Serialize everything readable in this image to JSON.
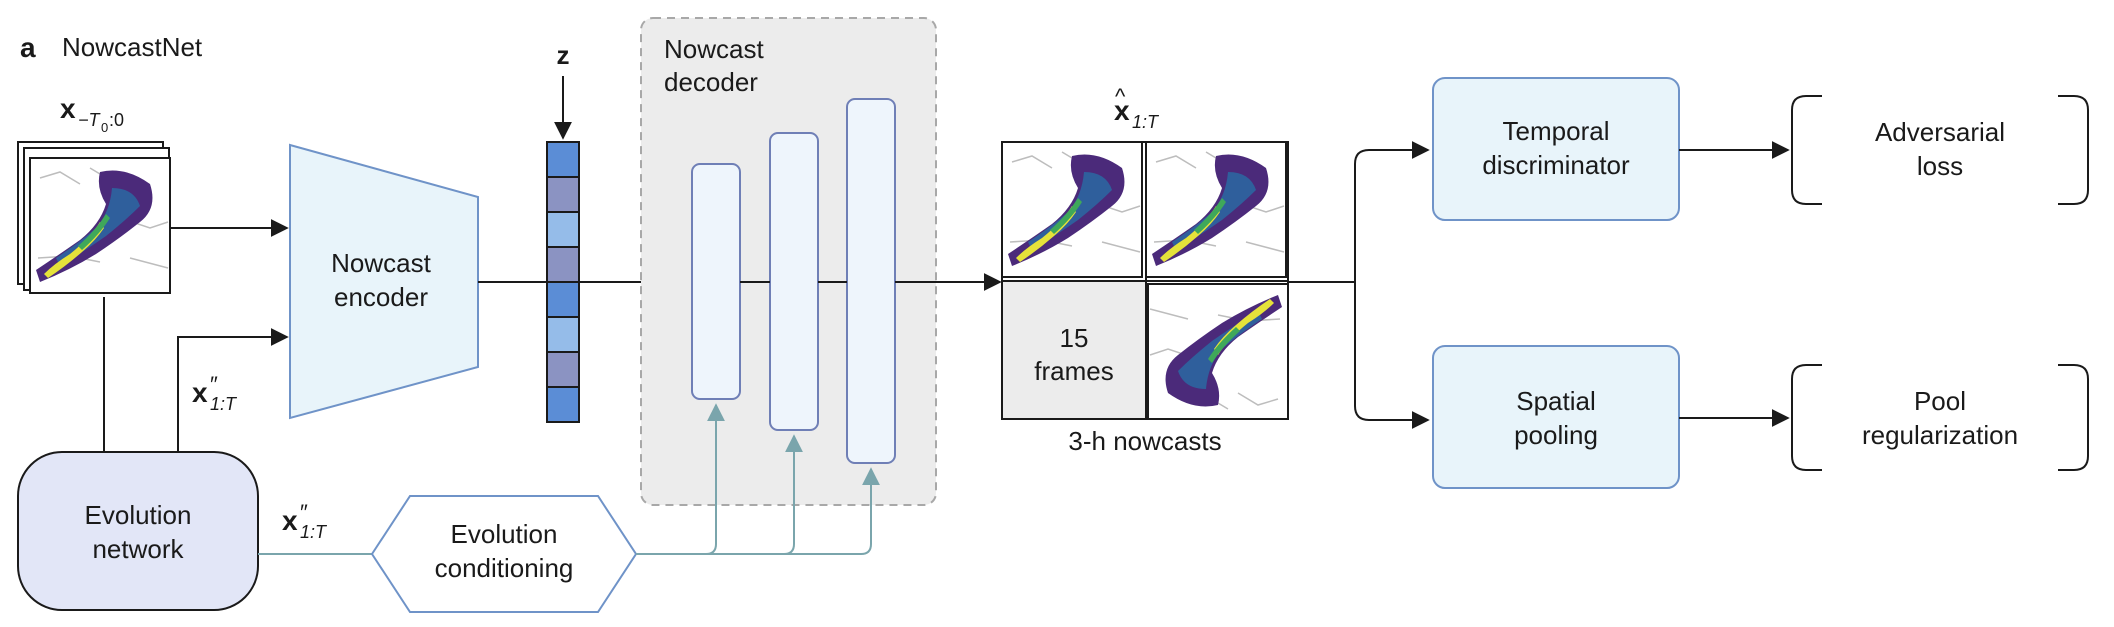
{
  "panel": {
    "letter": "a",
    "title": "NowcastNet"
  },
  "inputs": {
    "x_input_main": "x",
    "x_input_sub": "−T",
    "x_input_sub0": "0",
    "x_input_tail": ":0",
    "x_evo_main": "x",
    "x_evo_prime": "″",
    "x_evo_sub": "1:T"
  },
  "blocks": {
    "encoder": [
      "Nowcast",
      "encoder"
    ],
    "decoder": [
      "Nowcast",
      "decoder"
    ],
    "evolution_network": [
      "Evolution",
      "network"
    ],
    "evolution_conditioning": [
      "Evolution",
      "conditioning"
    ],
    "temporal_discriminator": [
      "Temporal",
      "discriminator"
    ],
    "spatial_pooling": [
      "Spatial",
      "pooling"
    ],
    "adversarial_loss": [
      "Adversarial",
      "loss"
    ],
    "pool_regularization": [
      "Pool",
      "regularization"
    ]
  },
  "latent": {
    "label": "z"
  },
  "output": {
    "label_main": "x",
    "label_hat": "^",
    "label_sub": "1:T",
    "frames_count": "15",
    "frames_word": "frames",
    "caption": "3-h nowcasts"
  },
  "colors": {
    "block_fill": "#e8f4fa",
    "block_stroke": "#6f93c8",
    "evo_fill": "#e2e6f7",
    "decoder_bg": "#ececec",
    "conditioning_line": "#7aa5ac",
    "z_cells": [
      "#5b8dd6",
      "#8b93c2",
      "#95bce9",
      "#8b93c2",
      "#5b8dd6",
      "#95bce9",
      "#8b93c2",
      "#5b8dd6"
    ]
  }
}
